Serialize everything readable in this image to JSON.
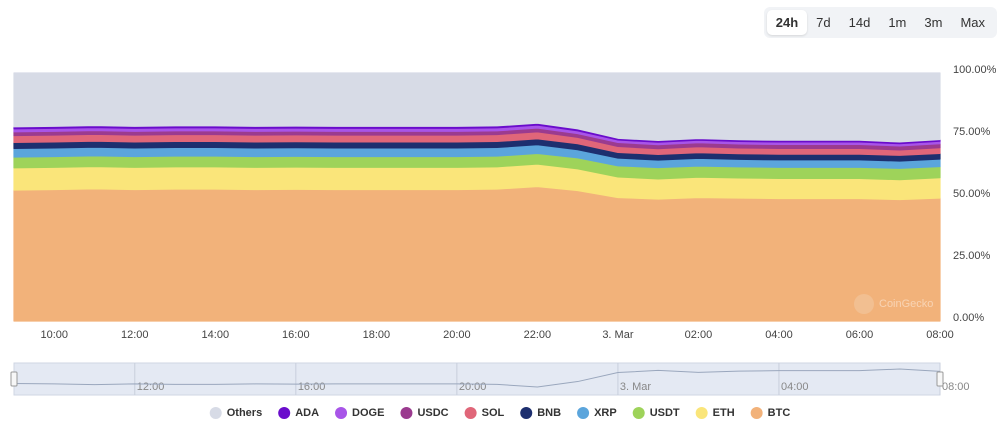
{
  "range_buttons": [
    "24h",
    "7d",
    "14d",
    "1m",
    "3m",
    "Max"
  ],
  "watermark": "CoinGecko",
  "navigator": {
    "labels": [
      "12:00",
      "16:00",
      "20:00",
      "3. Mar",
      "04:00",
      "08:00"
    ]
  },
  "chart_data": {
    "type": "stacked-area",
    "categories": [
      null,
      "10:00",
      null,
      "12:00",
      null,
      "14:00",
      null,
      "16:00",
      null,
      "18:00",
      null,
      "20:00",
      null,
      "22:00",
      null,
      "3. Mar",
      null,
      "02:00",
      null,
      "04:00",
      null,
      "06:00",
      null,
      "08:00"
    ],
    "ylim": [
      0,
      100
    ],
    "yticks": [
      {
        "value": 0,
        "label": "0.00%"
      },
      {
        "value": 25,
        "label": "25.00%"
      },
      {
        "value": 50,
        "label": "50.00%"
      },
      {
        "value": 75,
        "label": "75.00%"
      },
      {
        "value": 100,
        "label": "100.00%"
      }
    ],
    "grid": false,
    "series": [
      {
        "name": "BTC",
        "color": "#f2b27a",
        "values": [
          52.8,
          53.0,
          53.3,
          53.0,
          53.2,
          53.2,
          53.0,
          53.1,
          53.0,
          53.0,
          53.0,
          53.0,
          53.2,
          54.2,
          52.6,
          49.8,
          49.2,
          49.8,
          49.6,
          49.4,
          49.4,
          49.4,
          49.0,
          49.6
        ]
      },
      {
        "name": "ETH",
        "color": "#fae57a",
        "values": [
          9.0,
          9.0,
          9.0,
          9.0,
          9.0,
          9.0,
          9.0,
          9.0,
          9.0,
          9.0,
          9.0,
          9.0,
          9.0,
          9.1,
          8.8,
          8.3,
          8.1,
          8.2,
          8.1,
          8.1,
          8.1,
          8.1,
          8.0,
          8.2
        ]
      },
      {
        "name": "USDT",
        "color": "#9ed35a",
        "values": [
          4.3,
          4.3,
          4.3,
          4.3,
          4.3,
          4.3,
          4.3,
          4.3,
          4.3,
          4.3,
          4.3,
          4.3,
          4.3,
          4.3,
          4.4,
          4.5,
          4.6,
          4.5,
          4.5,
          4.5,
          4.5,
          4.5,
          4.6,
          4.5
        ]
      },
      {
        "name": "XRP",
        "color": "#5ba5dc",
        "values": [
          3.5,
          3.5,
          3.5,
          3.5,
          3.5,
          3.5,
          3.5,
          3.5,
          3.5,
          3.5,
          3.5,
          3.5,
          3.5,
          3.5,
          3.3,
          3.1,
          3.0,
          3.1,
          3.0,
          3.0,
          3.0,
          3.0,
          2.9,
          3.0
        ]
      },
      {
        "name": "BNB",
        "color": "#1d2f6f",
        "values": [
          2.4,
          2.4,
          2.4,
          2.4,
          2.4,
          2.4,
          2.4,
          2.4,
          2.4,
          2.4,
          2.4,
          2.4,
          2.4,
          2.4,
          2.4,
          2.3,
          2.3,
          2.3,
          2.3,
          2.3,
          2.3,
          2.3,
          2.3,
          2.3
        ]
      },
      {
        "name": "SOL",
        "color": "#e06679",
        "values": [
          2.8,
          2.8,
          2.8,
          2.8,
          2.8,
          2.8,
          2.8,
          2.8,
          2.8,
          2.8,
          2.8,
          2.8,
          2.8,
          2.8,
          2.6,
          2.4,
          2.3,
          2.4,
          2.3,
          2.3,
          2.3,
          2.3,
          2.2,
          2.3
        ]
      },
      {
        "name": "USDC",
        "color": "#9b3b8f",
        "values": [
          1.5,
          1.5,
          1.5,
          1.5,
          1.5,
          1.5,
          1.5,
          1.5,
          1.5,
          1.5,
          1.5,
          1.5,
          1.5,
          1.5,
          1.5,
          1.6,
          1.6,
          1.6,
          1.6,
          1.6,
          1.6,
          1.6,
          1.6,
          1.6
        ]
      },
      {
        "name": "DOGE",
        "color": "#a855e8",
        "values": [
          1.2,
          1.2,
          1.2,
          1.2,
          1.2,
          1.2,
          1.2,
          1.2,
          1.2,
          1.2,
          1.2,
          1.2,
          1.2,
          1.2,
          1.1,
          1.0,
          1.0,
          1.0,
          1.0,
          1.0,
          1.0,
          1.0,
          0.9,
          1.0
        ]
      },
      {
        "name": "ADA",
        "color": "#6a0dcc",
        "values": [
          0.8,
          0.8,
          0.8,
          0.8,
          0.8,
          0.8,
          0.8,
          0.8,
          0.8,
          0.8,
          0.8,
          0.8,
          0.8,
          0.8,
          0.8,
          0.7,
          0.7,
          0.7,
          0.7,
          0.7,
          0.7,
          0.7,
          0.7,
          0.7
        ]
      },
      {
        "name": "Others",
        "color": "#d7dbe6",
        "values": [
          21.7,
          21.5,
          21.2,
          21.5,
          21.3,
          21.3,
          21.5,
          21.4,
          21.5,
          21.5,
          21.5,
          21.5,
          21.3,
          20.2,
          22.5,
          26.3,
          27.2,
          26.4,
          26.9,
          27.1,
          27.1,
          27.1,
          27.8,
          26.8
        ]
      }
    ]
  }
}
